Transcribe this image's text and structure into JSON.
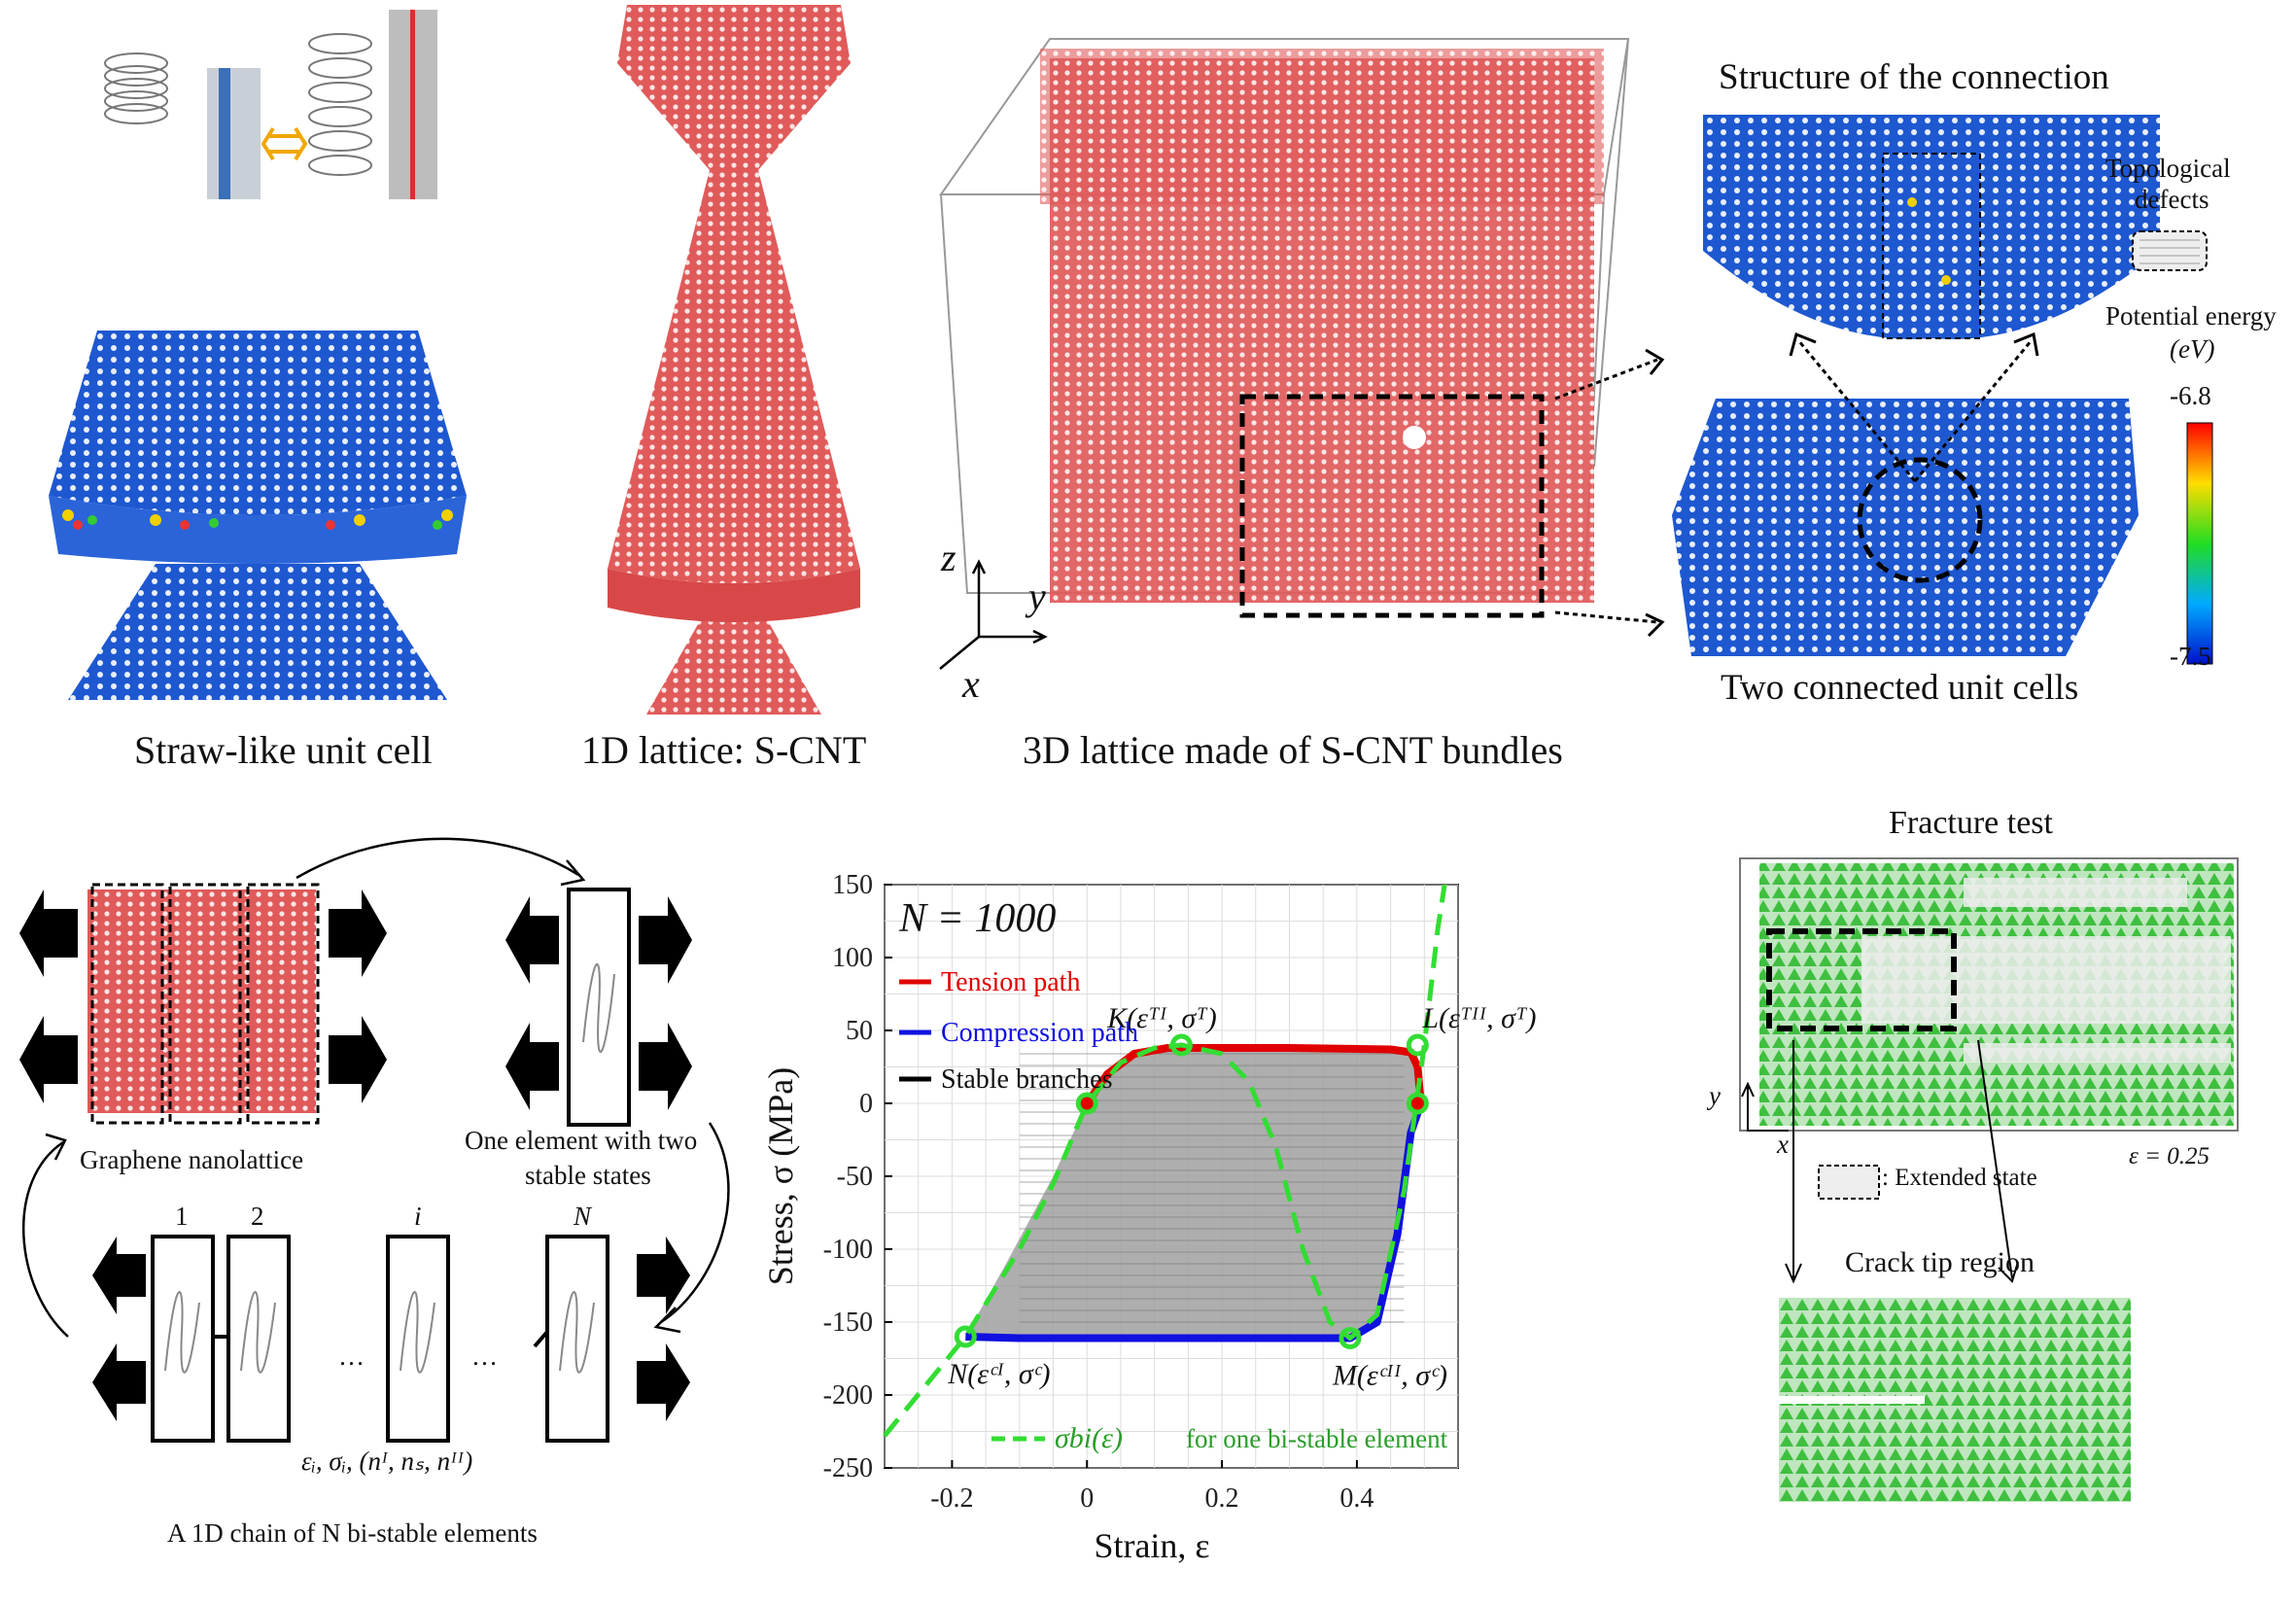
{
  "captions": {
    "straw_unit_cell": "Straw-like unit cell",
    "lattice_1d": "1D lattice: S-CNT",
    "lattice_3d": "3D lattice made of S-CNT bundles",
    "structure_connection": "Structure of the connection",
    "two_connected": "Two connected unit cells",
    "topological_defects_1": "Topological",
    "topological_defects_2": "defects",
    "potential_energy": "Potential energy",
    "energy_unit": "(eV)",
    "colorbar_max": "-6.8",
    "colorbar_min": "-7.5",
    "axis_z": "z",
    "axis_y": "y",
    "axis_x": "x",
    "graphene_nanolattice": "Graphene nanolattice",
    "one_element_1": "One element with two",
    "one_element_2": "stable states",
    "chain_label_1": "1",
    "chain_label_2": "2",
    "chain_label_i": "i",
    "chain_label_N": "N",
    "chain_dots": "…",
    "chain_vars": "εᵢ, σᵢ, (nᴵ, nₛ, nᴵᴵ)",
    "chain_caption": "A 1D chain of N bi-stable elements",
    "fracture_test": "Fracture test",
    "extended_state": ": Extended state",
    "strain_value": "ε = 0.25",
    "crack_tip": "Crack tip region",
    "fx_axis_y": "y",
    "fx_axis_x": "x"
  },
  "colors": {
    "lattice_red": "#e05a5a",
    "cnt_blue": "#1f5fd6",
    "tension": "#e00000",
    "compression": "#1010e0",
    "bistable": "#33dd33",
    "grey_fill": "#a0a0a0"
  },
  "chart_data": {
    "type": "line",
    "title": "N = 1000",
    "xlabel": "Strain,  ε",
    "ylabel": "Stress,  σ  (MPa)",
    "xlim": [
      -0.3,
      0.55
    ],
    "ylim": [
      -250,
      150
    ],
    "xticks": [
      -0.2,
      0,
      0.2,
      0.4
    ],
    "xtick_labels": [
      "-0.2",
      "0",
      "0.2",
      "0.4"
    ],
    "yticks": [
      150,
      100,
      50,
      0,
      -50,
      -100,
      -150,
      -200,
      -250
    ],
    "ytick_labels": [
      "150",
      "100",
      "50",
      "0",
      "-50",
      "-100",
      "-150",
      "-200",
      "-250"
    ],
    "grid": true,
    "legend_position": "top-left",
    "series": [
      {
        "name": "Tension path",
        "color": "#e00000",
        "x": [
          0,
          0.03,
          0.07,
          0.12,
          0.3,
          0.45,
          0.48,
          0.49,
          0.495
        ],
        "y": [
          0,
          20,
          34,
          38,
          38,
          37,
          35,
          25,
          0
        ]
      },
      {
        "name": "Compression path",
        "color": "#1010e0",
        "x": [
          -0.18,
          -0.1,
          0.1,
          0.3,
          0.39,
          0.43,
          0.46,
          0.48,
          0.495
        ],
        "y": [
          -160,
          -161,
          -161,
          -161,
          -161,
          -150,
          -90,
          -20,
          0
        ]
      },
      {
        "name": "Stable branches",
        "color": "#000000",
        "x": [],
        "y": []
      },
      {
        "name": "σbi(ε)",
        "color": "#33dd33",
        "dashed": true,
        "x": [
          -0.3,
          -0.18,
          -0.1,
          -0.05,
          0,
          0.05,
          0.1,
          0.14,
          0.2,
          0.24,
          0.28,
          0.32,
          0.36,
          0.39,
          0.43,
          0.47,
          0.5,
          0.52,
          0.53
        ],
        "y": [
          -228,
          -160,
          -100,
          -55,
          0,
          28,
          38,
          40,
          34,
          15,
          -30,
          -100,
          -150,
          -161,
          -145,
          -60,
          40,
          120,
          150
        ]
      }
    ],
    "bistable_legend_suffix": "for one bi-stable element",
    "points": [
      {
        "label": "K(εᵀᴵ, σᵀ)",
        "x": 0.14,
        "y": 40
      },
      {
        "label": "L(εᵀᴵᴵ, σᵀ)",
        "x": 0.49,
        "y": 40
      },
      {
        "label": "N(εᶜᴵ, σᶜ)",
        "x": -0.18,
        "y": -160
      },
      {
        "label": "M(εᶜᴵᴵ, σᶜ)",
        "x": 0.39,
        "y": -161
      }
    ],
    "stable_points": [
      {
        "x": 0,
        "y": 0
      },
      {
        "x": 0.49,
        "y": 0
      }
    ]
  }
}
